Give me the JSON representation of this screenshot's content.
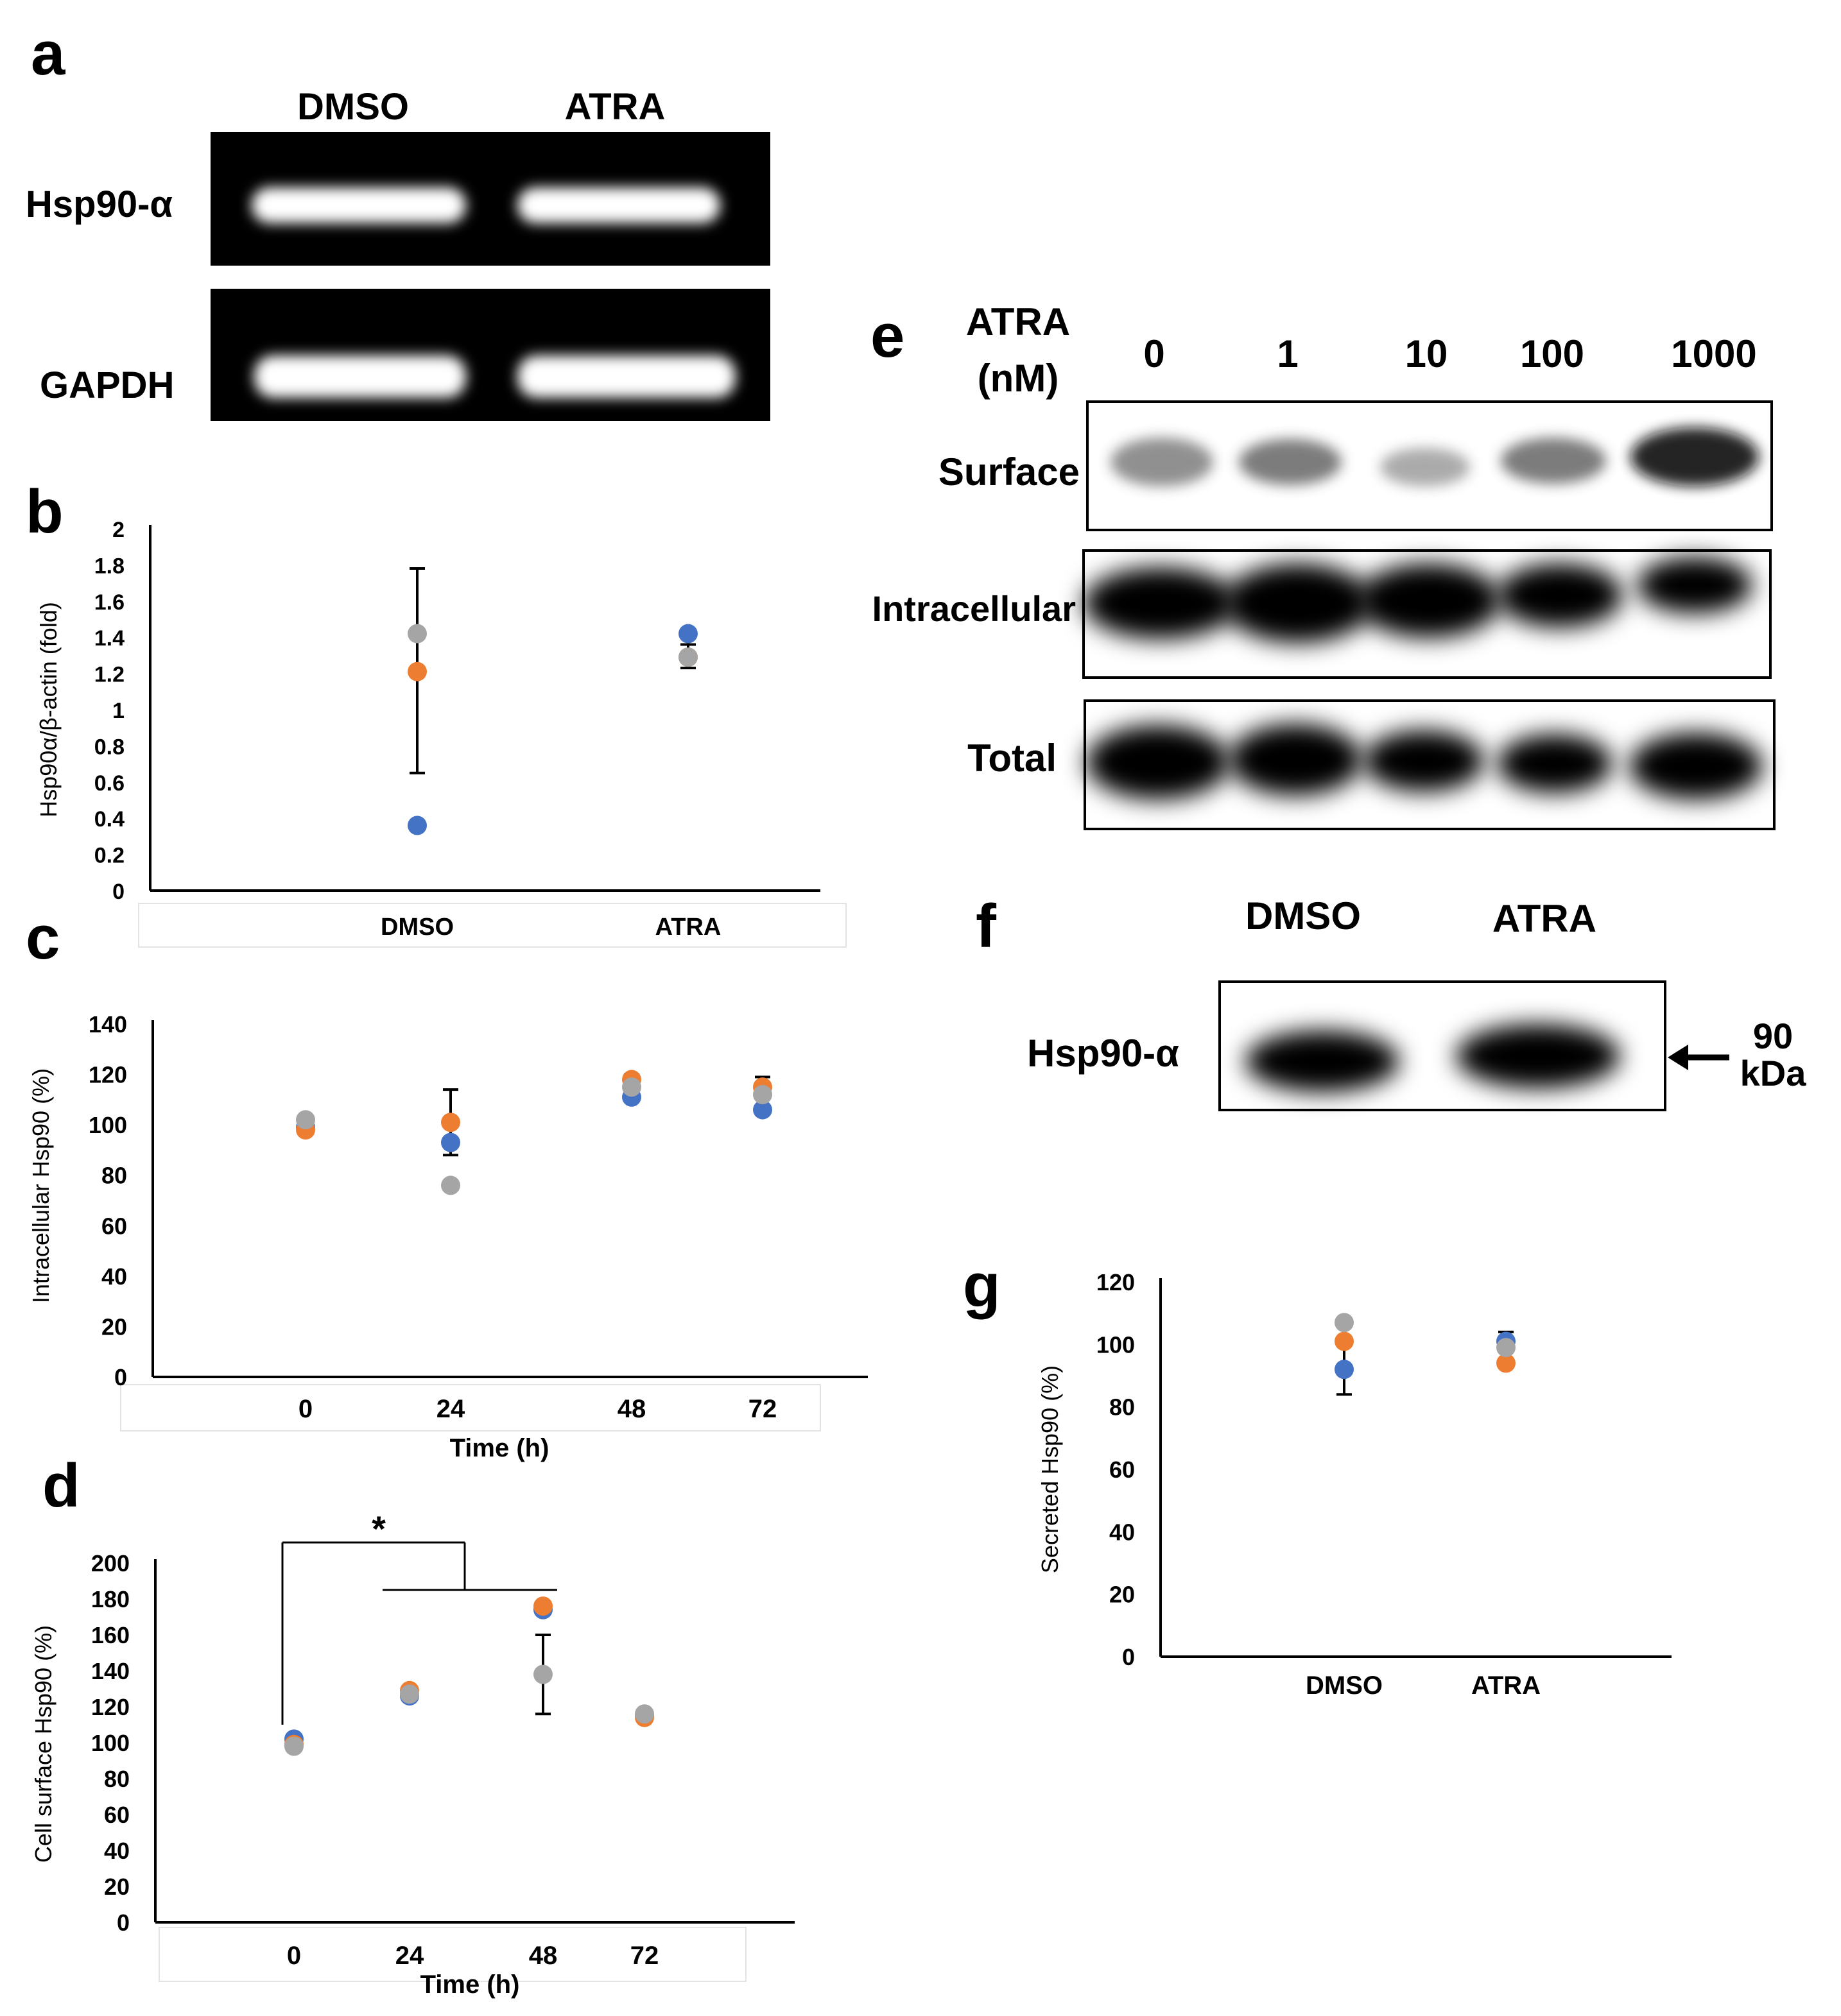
{
  "colors": {
    "series1": "#4472C4",
    "series2": "#ED7D31",
    "series3": "#A5A5A5",
    "blot_bg": "#000000",
    "band": "#ffffff"
  },
  "panel_a": {
    "letter": "a",
    "col_labels": [
      "DMSO",
      "ATRA"
    ],
    "row_labels": [
      "Hsp90-α",
      "GAPDH"
    ]
  },
  "panel_e": {
    "letter": "e",
    "condition_label_line1": "ATRA",
    "condition_label_line2": "(nM)",
    "doses": [
      "0",
      "1",
      "10",
      "100",
      "1000"
    ],
    "row_labels": [
      "Surface",
      "Intracellular",
      "Total"
    ]
  },
  "panel_f": {
    "letter": "f",
    "col_labels": [
      "DMSO",
      "ATRA"
    ],
    "row_label": "Hsp90-α",
    "marker_line1": "90",
    "marker_line2": "kDa"
  },
  "chart_data": [
    {
      "id": "b",
      "letter": "b",
      "type": "scatter",
      "categories": [
        "DMSO",
        "ATRA"
      ],
      "ylabel": "Hsp90α/β-actin (fold)",
      "xlabel": "",
      "ylim": [
        0,
        2
      ],
      "yticks": [
        "0",
        "0.2",
        "0.4",
        "0.6",
        "0.8",
        "1",
        "1.2",
        "1.4",
        "1.6",
        "1.8",
        "2"
      ],
      "series": [
        {
          "values": [
            0.36,
            1.42
          ]
        },
        {
          "values": [
            1.21,
            1.29
          ]
        },
        {
          "values": [
            1.42,
            1.29
          ]
        }
      ],
      "error_bars": [
        {
          "center": 1.22,
          "low": 0.65,
          "high": 1.78
        },
        {
          "center": 1.3,
          "low": 1.23,
          "high": 1.36
        }
      ],
      "grid": false
    },
    {
      "id": "c",
      "letter": "c",
      "type": "scatter",
      "categories": [
        "0",
        "24",
        "48",
        "72"
      ],
      "xlabel": "Time (h)",
      "ylabel": "Intracellular Hsp90 (%)",
      "ylim": [
        0,
        140
      ],
      "yticks": [
        "0",
        "20",
        "40",
        "60",
        "80",
        "100",
        "120",
        "140"
      ],
      "series": [
        {
          "values": [
            99,
            93,
            111,
            106
          ]
        },
        {
          "values": [
            98,
            101,
            118,
            115
          ]
        },
        {
          "values": [
            102,
            76,
            115,
            112
          ]
        }
      ],
      "error_bars": [
        {
          "center": 100,
          "low": 98,
          "high": 102
        },
        {
          "center": 101,
          "low": 88,
          "high": 114
        },
        {
          "center": 116,
          "low": 111,
          "high": 120
        },
        {
          "center": 113,
          "low": 106,
          "high": 119
        }
      ],
      "grid": false
    },
    {
      "id": "d",
      "letter": "d",
      "type": "scatter",
      "categories": [
        "0",
        "24",
        "48",
        "72"
      ],
      "xlabel": "Time (h)",
      "ylabel": "Cell surface Hsp90 (%)",
      "ylim": [
        0,
        200
      ],
      "yticks": [
        "0",
        "20",
        "40",
        "60",
        "80",
        "100",
        "120",
        "140",
        "160",
        "180",
        "200"
      ],
      "series": [
        {
          "values": [
            102,
            126,
            174,
            115
          ]
        },
        {
          "values": [
            99,
            129,
            176,
            114
          ]
        },
        {
          "values": [
            98,
            127,
            138,
            116
          ]
        }
      ],
      "error_bars": [
        {
          "center": 100,
          "low": 98,
          "high": 102
        },
        {
          "center": 127,
          "low": 126,
          "high": 129
        },
        {
          "center": 138,
          "low": 116,
          "high": 160
        },
        {
          "center": 115,
          "low": 114,
          "high": 116
        }
      ],
      "significance": "*",
      "grid": false
    },
    {
      "id": "g",
      "letter": "g",
      "type": "scatter",
      "categories": [
        "DMSO",
        "ATRA"
      ],
      "xlabel": "",
      "ylabel": "Secreted Hsp90 (%)",
      "ylim": [
        0,
        120
      ],
      "yticks": [
        "0",
        "20",
        "40",
        "60",
        "80",
        "100",
        "120"
      ],
      "series": [
        {
          "values": [
            92,
            101
          ]
        },
        {
          "values": [
            101,
            94
          ]
        },
        {
          "values": [
            107,
            99
          ]
        }
      ],
      "error_bars": [
        {
          "center": 100,
          "low": 84,
          "high": 107
        },
        {
          "center": 98,
          "low": 94,
          "high": 104
        }
      ],
      "grid": false
    }
  ]
}
